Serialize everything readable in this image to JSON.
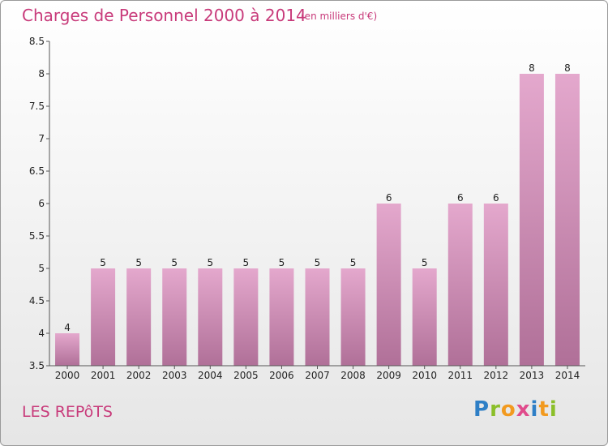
{
  "header": {
    "title": "Charges de Personnel 2000 à 2014",
    "subtitle": "(en milliers d'€)"
  },
  "footer": {
    "place": "LES REPôTS",
    "logo": "Proxiti"
  },
  "colors": {
    "bar_top": "#e4a8cd",
    "bar_bottom": "#b07098",
    "title": "#c83a7a"
  },
  "chart_data": {
    "type": "bar",
    "title": "Charges de Personnel 2000 à 2014",
    "subtitle": "(en milliers d'€)",
    "categories": [
      "2000",
      "2001",
      "2002",
      "2003",
      "2004",
      "2005",
      "2006",
      "2007",
      "2008",
      "2009",
      "2010",
      "2011",
      "2012",
      "2013",
      "2014"
    ],
    "values": [
      4,
      5,
      5,
      5,
      5,
      5,
      5,
      5,
      5,
      6,
      5,
      6,
      6,
      8,
      8
    ],
    "data_labels": [
      "4",
      "5",
      "5",
      "5",
      "5",
      "5",
      "5",
      "5",
      "5",
      "6",
      "5",
      "6",
      "6",
      "8",
      "8"
    ],
    "ylim": [
      3.5,
      8.5
    ],
    "yticks": [
      "3.5",
      "4",
      "4.5",
      "5",
      "5.5",
      "6",
      "6.5",
      "7",
      "7.5",
      "8",
      "8.5"
    ],
    "grid": false
  }
}
